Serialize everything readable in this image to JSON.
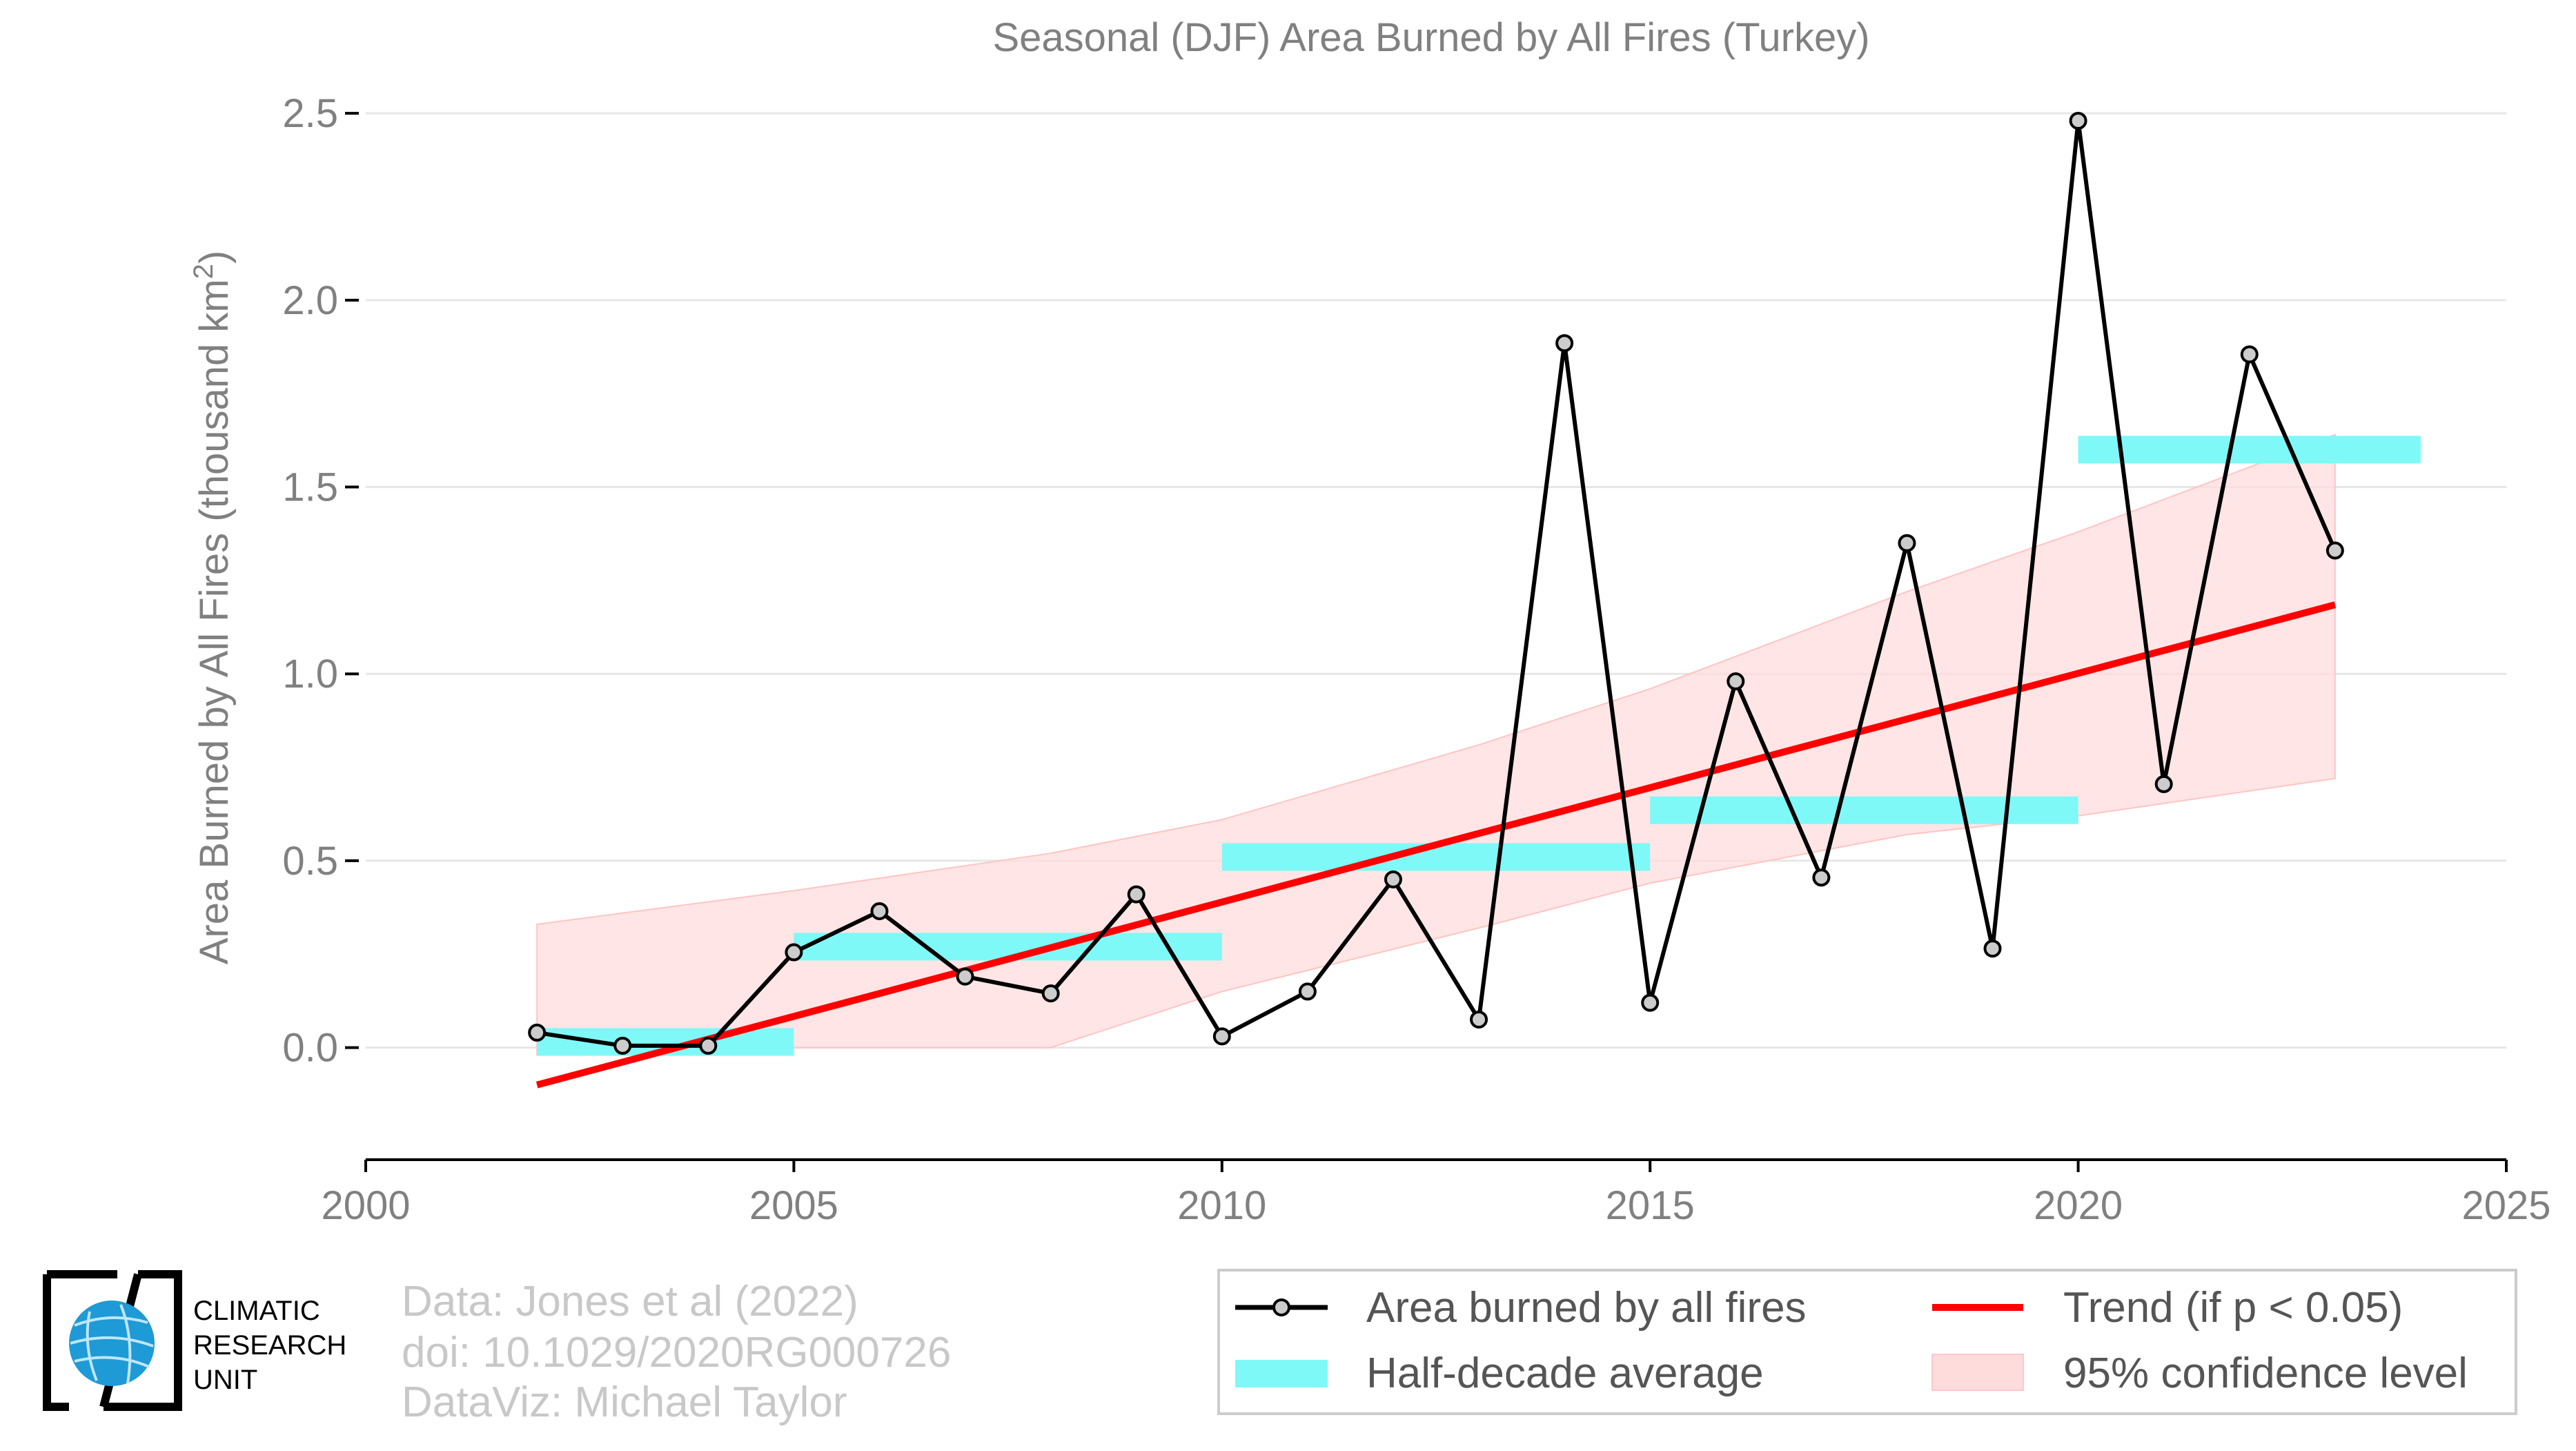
{
  "chart_data": {
    "type": "line",
    "title": "Seasonal (DJF) Area Burned by All Fires (Turkey)",
    "ylabel": "Area Burned by All Fires (thousand km",
    "ylabel_superscript": "2",
    "ylabel_suffix": ")",
    "xlabel": "",
    "xlim": [
      2000,
      2025
    ],
    "ylim": [
      -0.3,
      2.6
    ],
    "x_ticks": [
      2000,
      2005,
      2010,
      2015,
      2020,
      2025
    ],
    "y_ticks": [
      0.0,
      0.5,
      1.0,
      1.5,
      2.0,
      2.5
    ],
    "y_tick_labels": [
      "0.0",
      "0.5",
      "1.0",
      "1.5",
      "2.0",
      "2.5"
    ],
    "grid": "horizontal",
    "legend_placement": "bottom-right",
    "series": [
      {
        "name": "Area burned by all fires",
        "type": "line",
        "color": "#000000",
        "marker_color": "#cccccc",
        "x": [
          2002,
          2003,
          2004,
          2005,
          2006,
          2007,
          2008,
          2009,
          2010,
          2011,
          2012,
          2013,
          2014,
          2015,
          2016,
          2017,
          2018,
          2019,
          2020,
          2021,
          2022,
          2023
        ],
        "y": [
          0.04,
          0.005,
          0.005,
          0.255,
          0.365,
          0.19,
          0.145,
          0.41,
          0.03,
          0.15,
          0.45,
          0.075,
          1.885,
          0.12,
          0.98,
          0.455,
          1.35,
          0.265,
          2.48,
          0.705,
          1.855,
          1.33
        ]
      },
      {
        "name": "Half-decade average",
        "type": "step",
        "color": "#7ff8f8",
        "segments": [
          {
            "x0": 2002,
            "x1": 2005,
            "y": 0.015
          },
          {
            "x0": 2005,
            "x1": 2010,
            "y": 0.27
          },
          {
            "x0": 2010,
            "x1": 2015,
            "y": 0.51
          },
          {
            "x0": 2015,
            "x1": 2020,
            "y": 0.635
          },
          {
            "x0": 2020,
            "x1": 2024,
            "y": 1.6
          }
        ]
      },
      {
        "name": "Trend (if p < 0.05)",
        "type": "line",
        "color": "#ff0000",
        "x": [
          2002,
          2023
        ],
        "y": [
          -0.1,
          1.185
        ]
      },
      {
        "name": "95% confidence level",
        "type": "area",
        "color": "#ffdcdc",
        "x": [
          2002,
          2005,
          2008,
          2010,
          2013,
          2015,
          2018,
          2020,
          2023
        ],
        "upper": [
          0.33,
          0.42,
          0.52,
          0.61,
          0.81,
          0.96,
          1.22,
          1.38,
          1.64
        ],
        "lower": [
          -0.02,
          0.0,
          0.0,
          0.15,
          0.32,
          0.44,
          0.57,
          0.62,
          0.72
        ]
      }
    ]
  },
  "credits": {
    "line1": "Data: Jones et al (2022)",
    "line2": "doi: 10.1029/2020RG000726",
    "line3": "DataViz: Michael Taylor"
  },
  "logo": {
    "line1": "CLIMATIC",
    "line2": "RESEARCH",
    "line3": "UNIT",
    "globe_color": "#1e9ad6"
  }
}
